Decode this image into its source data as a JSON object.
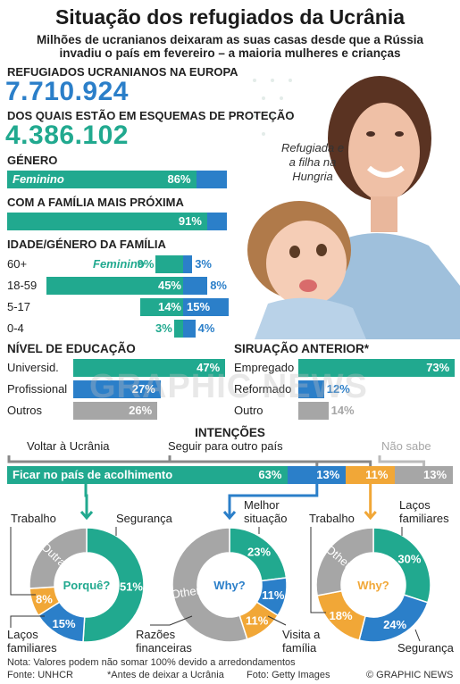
{
  "header": {
    "title": "Situação dos refugiados da Ucrânia",
    "subtitle_line1": "Milhões de ucranianos deixaram as suas casas desde que a Rússia",
    "subtitle_line2": "invadiu o país em fevereiro – a maioria mulheres e crianças"
  },
  "totals": {
    "refugees_label": "REFUGIADOS UCRANIANOS NA EUROPA",
    "refugees_value": "7.710.924",
    "protected_label": "DOS QUAIS ESTÃO EM ESQUEMAS DE PROTEÇÃO",
    "protected_value": "4.386.102"
  },
  "photo": {
    "caption_line1": "Refugiada e",
    "caption_line2": "a filha na",
    "caption_line3": "Hungria"
  },
  "watermark": "GRAPHIC NEWS",
  "colors": {
    "teal": "#21a98f",
    "blue": "#2b7fc9",
    "grey": "#a6a6a6",
    "orange": "#f1a737"
  },
  "chart_data": [
    {
      "type": "bar",
      "title": "GÉNERO",
      "categories": [
        "Feminino"
      ],
      "values": [
        86
      ],
      "labels": [
        "86%"
      ]
    },
    {
      "type": "bar",
      "title": "COM A FAMÍLIA MAIS PRÓXIMA",
      "values": [
        91
      ],
      "labels": [
        "91%"
      ]
    },
    {
      "type": "bar",
      "title": "IDADE/GÉNERO DA FAMÍLIA",
      "legend": "Feminino",
      "categories": [
        "60+",
        "18-59",
        "5-17",
        "0-4"
      ],
      "series": [
        {
          "name": "Feminino",
          "values": [
            9,
            45,
            14,
            3
          ],
          "labels": [
            "9%",
            "45%",
            "14%",
            "3%"
          ]
        },
        {
          "values": [
            3,
            8,
            15,
            4
          ],
          "labels": [
            "3%",
            "8%",
            "15%",
            "4%"
          ]
        }
      ]
    },
    {
      "type": "bar",
      "title": "NÍVEL DE EDUCAÇÃO",
      "categories": [
        "Universid.",
        "Profissional",
        "Outros"
      ],
      "values": [
        47,
        27,
        26
      ],
      "labels": [
        "47%",
        "27%",
        "26%"
      ]
    },
    {
      "type": "bar",
      "title": "SIRUAÇÃO ANTERIOR*",
      "categories": [
        "Empregado",
        "Reformado",
        "Outro"
      ],
      "values": [
        73,
        12,
        14
      ],
      "labels": [
        "73%",
        "12%",
        "14%"
      ]
    },
    {
      "type": "bar",
      "title": "INTENÇÕES",
      "categories": [
        "Ficar no país de acolhimento",
        "Voltar à Ucrânia",
        "Seguir para outro país",
        "Não sabe"
      ],
      "values": [
        63,
        13,
        11,
        13
      ],
      "labels": [
        "63%",
        "13%",
        "11%",
        "13%"
      ]
    },
    {
      "type": "pie",
      "center_label": "Porquê?",
      "slices": [
        {
          "name": "Segurança",
          "value": 51,
          "label": "51%"
        },
        {
          "name": "Laços familiares",
          "value": 15,
          "label": "15%"
        },
        {
          "name": "Trabalho",
          "value": 8,
          "label": "8%"
        },
        {
          "name": "Outra",
          "value": 26,
          "label": ""
        }
      ]
    },
    {
      "type": "pie",
      "center_label": "Why?",
      "slices": [
        {
          "name": "Melhor situação",
          "value": 23,
          "label": "23%"
        },
        {
          "name": "Visita a família",
          "value": 11,
          "label": "11%"
        },
        {
          "name": "Razões financeiras",
          "value": 11,
          "label": "11%"
        },
        {
          "name": "Other",
          "value": 55,
          "label": ""
        }
      ]
    },
    {
      "type": "pie",
      "center_label": "Why?",
      "slices": [
        {
          "name": "Laços familiares",
          "value": 30,
          "label": "30%"
        },
        {
          "name": "Segurança",
          "value": 24,
          "label": "24%"
        },
        {
          "name": "Trabalho",
          "value": 18,
          "label": "18%"
        },
        {
          "name": "Other",
          "value": 28,
          "label": ""
        }
      ]
    }
  ],
  "labels": {
    "pie1_trabalho": "Trabalho",
    "pie1_seguranca": "Segurança",
    "pie1_lacos1": "Laços",
    "pie1_lacos2": "familiares",
    "pie2_melhor1": "Melhor",
    "pie2_melhor2": "situação",
    "pie2_razoes1": "Razões",
    "pie2_razoes2": "financeiras",
    "pie2_visita1": "Visita a",
    "pie2_visita2": "família",
    "pie3_lacos1": "Laços",
    "pie3_lacos2": "familiares",
    "pie3_trabalho": "Trabalho",
    "pie3_seguranca": "Segurança"
  },
  "footer": {
    "note": "Nota: Valores podem não somar 100% devido a arredondamentos",
    "source": "Fonte: UNHCR",
    "footnote": "*Antes de deixar a Ucrânia",
    "photo_credit": "Foto: Getty Images",
    "copyright": "© GRAPHIC NEWS"
  }
}
